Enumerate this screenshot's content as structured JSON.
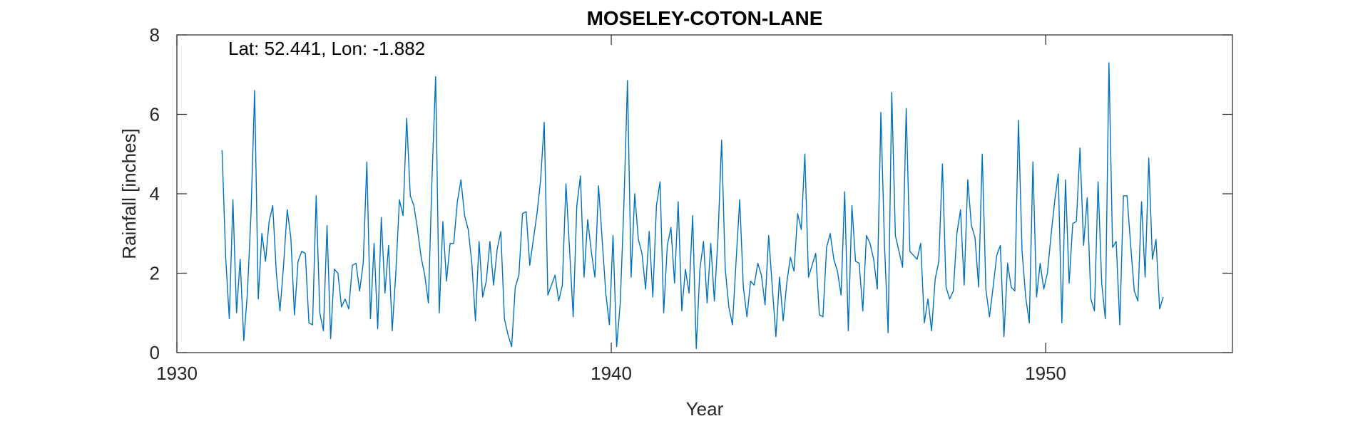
{
  "chart_data": {
    "type": "line",
    "title": "MOSELEY-COTON-LANE",
    "xlabel": "Year",
    "ylabel": "Rainfall [inches]",
    "annotation": "Lat: 52.441, Lon: -1.882",
    "xlim": [
      1930,
      1954.3
    ],
    "ylim": [
      0,
      8
    ],
    "xticks": [
      1930,
      1940,
      1950
    ],
    "yticks": [
      0,
      2,
      4,
      6,
      8
    ],
    "grid": false,
    "line_color": "#0072BD",
    "x_start": 1931.04,
    "x_step": 0.0833333,
    "series": [
      {
        "values": [
          5.1,
          2.4,
          0.85,
          3.85,
          1.0,
          2.35,
          0.3,
          1.5,
          3.5,
          6.6,
          1.35,
          3.0,
          2.3,
          3.3,
          3.7,
          2.0,
          1.05,
          2.2,
          3.6,
          2.9,
          0.95,
          2.3,
          2.55,
          2.5,
          0.75,
          0.7,
          3.95,
          1.0,
          0.55,
          3.2,
          0.35,
          2.1,
          2.0,
          1.15,
          1.35,
          1.1,
          2.2,
          2.25,
          1.55,
          2.25,
          4.8,
          0.85,
          2.75,
          0.6,
          3.4,
          1.5,
          2.7,
          0.55,
          2.0,
          3.85,
          3.45,
          5.9,
          3.95,
          3.7,
          3.1,
          2.4,
          1.95,
          1.25,
          4.4,
          6.95,
          1.0,
          3.3,
          1.8,
          2.75,
          2.75,
          3.8,
          4.35,
          3.45,
          3.1,
          2.25,
          0.8,
          2.8,
          1.4,
          1.8,
          2.8,
          1.7,
          2.6,
          3.05,
          0.85,
          0.45,
          0.15,
          1.65,
          1.95,
          3.5,
          3.55,
          2.2,
          2.85,
          3.5,
          4.35,
          5.8,
          1.45,
          1.7,
          1.95,
          1.3,
          1.7,
          4.25,
          2.6,
          0.9,
          3.7,
          4.45,
          1.9,
          3.35,
          2.55,
          1.9,
          4.2,
          2.85,
          1.5,
          0.7,
          2.95,
          0.15,
          1.25,
          3.7,
          6.85,
          1.9,
          4.0,
          2.85,
          2.5,
          1.6,
          3.05,
          1.4,
          3.7,
          4.3,
          1.0,
          2.7,
          3.15,
          1.75,
          3.8,
          1.05,
          2.1,
          1.5,
          3.45,
          0.1,
          2.1,
          2.8,
          1.25,
          2.75,
          1.3,
          2.9,
          5.35,
          2.1,
          1.15,
          0.7,
          2.3,
          3.85,
          1.65,
          0.9,
          1.8,
          1.7,
          2.25,
          1.95,
          1.2,
          2.95,
          1.65,
          0.4,
          1.9,
          0.8,
          1.75,
          2.4,
          2.05,
          3.5,
          3.1,
          5.0,
          1.9,
          2.2,
          2.5,
          0.95,
          0.9,
          2.65,
          3.0,
          2.35,
          2.05,
          1.45,
          4.05,
          0.55,
          3.7,
          2.3,
          2.25,
          1.05,
          2.95,
          2.75,
          2.35,
          1.6,
          6.05,
          2.7,
          0.5,
          6.55,
          2.95,
          2.55,
          2.15,
          6.15,
          2.55,
          2.45,
          2.35,
          2.75,
          0.75,
          1.35,
          0.55,
          1.85,
          2.3,
          4.75,
          1.65,
          1.35,
          1.55,
          3.0,
          3.6,
          1.7,
          4.35,
          3.2,
          2.9,
          1.65,
          5.0,
          1.6,
          0.9,
          1.65,
          2.45,
          2.7,
          0.4,
          2.25,
          1.65,
          1.55,
          5.85,
          2.55,
          1.4,
          0.75,
          4.8,
          1.4,
          2.25,
          1.6,
          2.0,
          2.95,
          3.8,
          4.5,
          0.75,
          4.35,
          1.75,
          3.25,
          3.3,
          5.15,
          2.7,
          3.9,
          1.35,
          1.05,
          4.3,
          1.75,
          0.85,
          7.3,
          2.65,
          2.8,
          0.7,
          3.95,
          3.95,
          2.7,
          1.55,
          1.3,
          3.8,
          1.9,
          4.9,
          2.35,
          2.85,
          1.1,
          1.4
        ]
      }
    ]
  }
}
